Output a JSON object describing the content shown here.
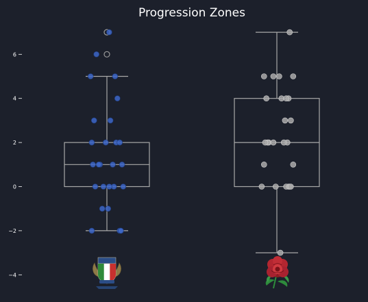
{
  "chart_data": {
    "type": "box",
    "title": "Progression Zones",
    "xlabel": "",
    "ylabel": "",
    "ylim": [
      -4.5,
      7.5
    ],
    "yticks": [
      -4,
      -2,
      0,
      2,
      4,
      6
    ],
    "ytick_labels": [
      "−4",
      "−2",
      "0",
      "2",
      "4",
      "6"
    ],
    "grid": false,
    "legend": "none",
    "series": [
      {
        "team_logo": "italy-fir-badge",
        "box_color": "#a9a9a9",
        "point_color": "#3d67c9",
        "stats": {
          "whisker_low": -2,
          "q1": 0,
          "median": 1,
          "q3": 2,
          "whisker_high": 5
        },
        "points": [
          -2,
          -2,
          -2,
          -1,
          -1,
          0,
          0,
          0,
          0,
          0,
          1,
          1,
          1,
          1,
          1,
          2,
          2,
          2,
          2,
          3,
          3,
          4,
          5,
          5,
          6,
          7
        ],
        "outliers": [
          6,
          7
        ]
      },
      {
        "team_logo": "england-red-rose",
        "box_color": "#a9a9a9",
        "point_color": "#a9a9a9",
        "stats": {
          "whisker_low": -3,
          "q1": 0,
          "median": 2,
          "q3": 4,
          "whisker_high": 7
        },
        "points": [
          -3,
          0,
          0,
          0,
          0,
          0,
          0,
          1,
          1,
          2,
          2,
          2,
          2,
          2,
          2,
          3,
          3,
          4,
          4,
          4,
          4,
          5,
          5,
          5,
          5,
          7
        ],
        "outliers": []
      }
    ]
  }
}
